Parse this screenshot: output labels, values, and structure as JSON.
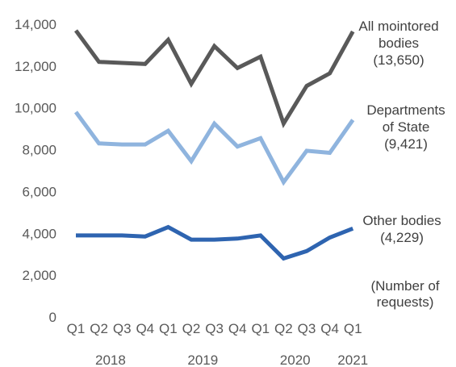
{
  "chart_data": {
    "type": "line",
    "categories": [
      "Q1",
      "Q2",
      "Q3",
      "Q4",
      "Q1",
      "Q2",
      "Q3",
      "Q4",
      "Q1",
      "Q2",
      "Q3",
      "Q4",
      "Q1"
    ],
    "years": [
      {
        "label": "2018",
        "start": 0,
        "end": 3
      },
      {
        "label": "2019",
        "start": 4,
        "end": 7
      },
      {
        "label": "2020",
        "start": 8,
        "end": 11
      },
      {
        "label": "2021",
        "start": 12,
        "end": 12
      }
    ],
    "ylim": [
      0,
      14000
    ],
    "y_ticks": [
      {
        "value": 0,
        "label": "0"
      },
      {
        "value": 2000,
        "label": "2,000"
      },
      {
        "value": 4000,
        "label": "4,000"
      },
      {
        "value": 6000,
        "label": "6,000"
      },
      {
        "value": 8000,
        "label": "8,000"
      },
      {
        "value": 10000,
        "label": "10,000"
      },
      {
        "value": 12000,
        "label": "12,000"
      },
      {
        "value": 14000,
        "label": "14,000"
      }
    ],
    "ylabel_lines": [
      "(Number of",
      "requests)"
    ],
    "grid": false,
    "series": [
      {
        "name_lines": [
          "All mointored",
          "bodies",
          "(13,650)"
        ],
        "color": "#595959",
        "values": [
          13700,
          12200,
          12150,
          12100,
          13250,
          11150,
          12950,
          11900,
          12450,
          9250,
          11050,
          11650,
          13650
        ]
      },
      {
        "name_lines": [
          "Departments",
          "of State",
          "(9,421)"
        ],
        "color": "#8fb4de",
        "values": [
          9800,
          8300,
          8250,
          8250,
          8900,
          7450,
          9250,
          8150,
          8550,
          6450,
          7950,
          7850,
          9421
        ]
      },
      {
        "name_lines": [
          "Other bodies",
          "(4,229)"
        ],
        "color": "#2e64b0",
        "values": [
          3900,
          3900,
          3900,
          3850,
          4300,
          3700,
          3700,
          3750,
          3900,
          2800,
          3150,
          3800,
          4229
        ]
      }
    ]
  }
}
